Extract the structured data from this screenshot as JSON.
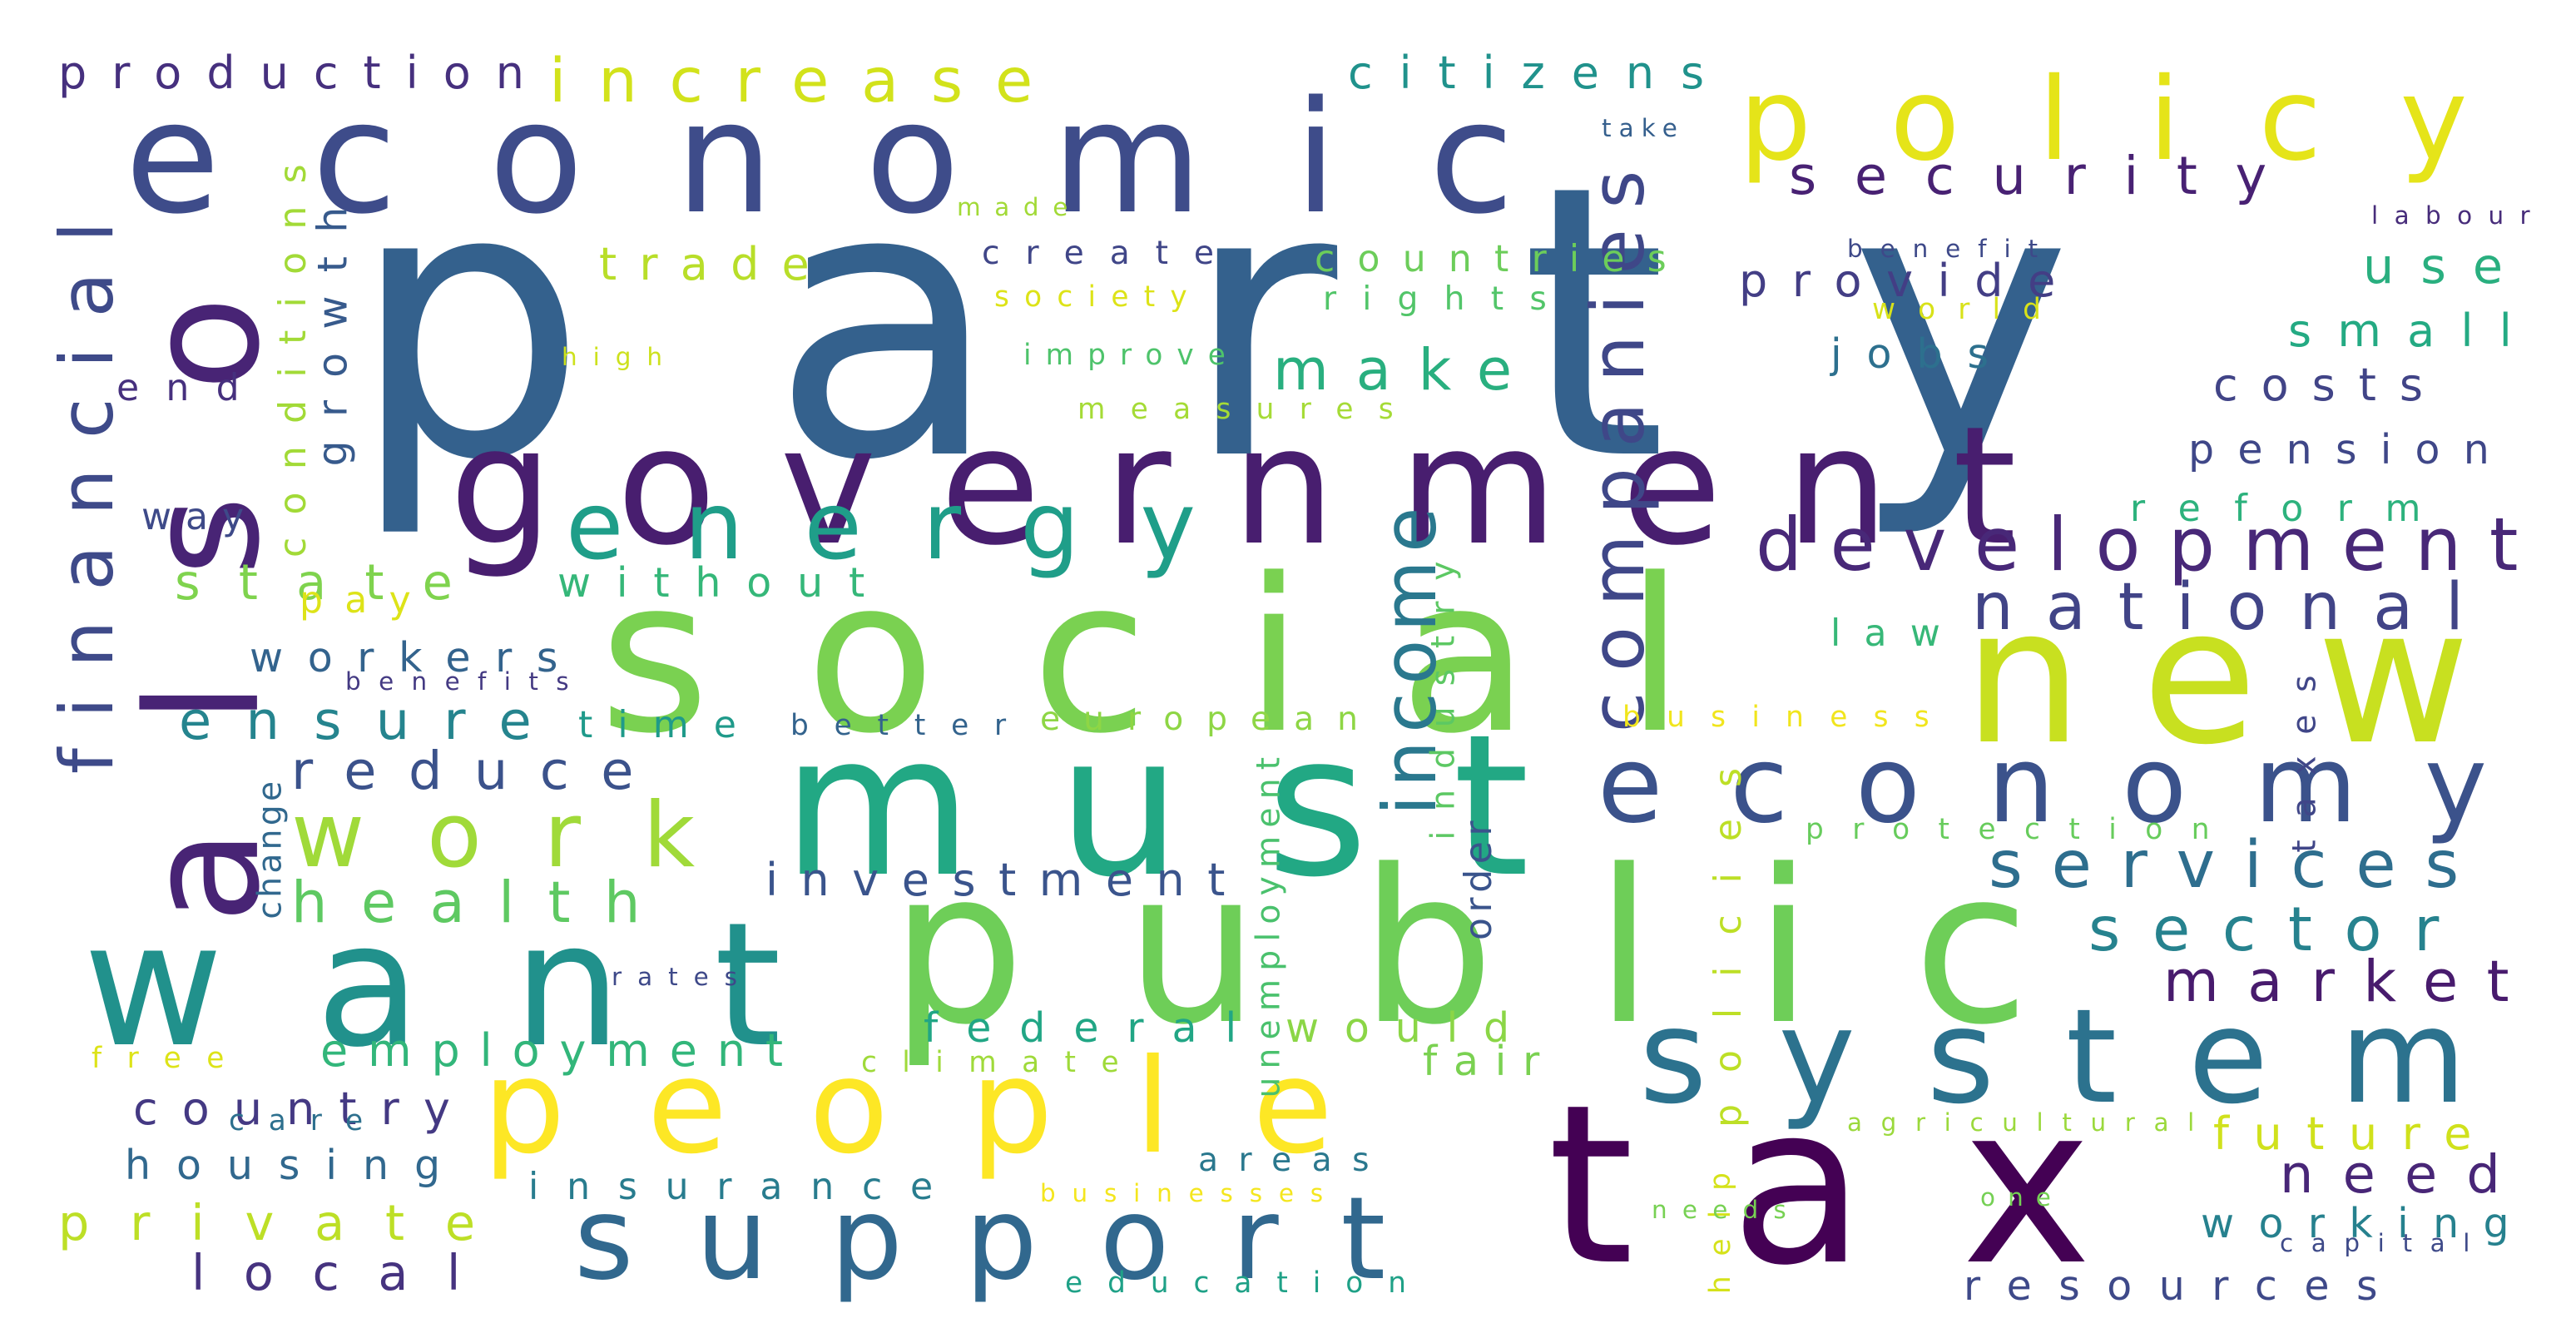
{
  "words": [
    {
      "text": "party",
      "color": "#34618d"
    },
    {
      "text": "economic",
      "color": "#3e4c8a"
    },
    {
      "text": "government",
      "color": "#481e6f"
    },
    {
      "text": "social",
      "color": "#7ad151"
    },
    {
      "text": "must",
      "color": "#22a884"
    },
    {
      "text": "public",
      "color": "#6ece58"
    },
    {
      "text": "tax",
      "color": "#440154"
    },
    {
      "text": "also",
      "color": "#482475"
    },
    {
      "text": "want",
      "color": "#21918c"
    },
    {
      "text": "policy",
      "color": "#e5e419"
    },
    {
      "text": "new",
      "color": "#c8e020"
    },
    {
      "text": "economy",
      "color": "#3b528b"
    },
    {
      "text": "system",
      "color": "#2c728e"
    },
    {
      "text": "people",
      "color": "#fde725"
    },
    {
      "text": "support",
      "color": "#31688e"
    },
    {
      "text": "energy",
      "color": "#1f9e89"
    },
    {
      "text": "work",
      "color": "#a0da39"
    },
    {
      "text": "financial",
      "color": "#3e4a89"
    },
    {
      "text": "development",
      "color": "#482878"
    },
    {
      "text": "companies",
      "color": "#3f4788"
    },
    {
      "text": "income",
      "color": "#2a788e"
    },
    {
      "text": "national",
      "color": "#414487"
    },
    {
      "text": "services",
      "color": "#2e6e8e"
    },
    {
      "text": "sector",
      "color": "#26828e"
    },
    {
      "text": "market",
      "color": "#481b6d"
    },
    {
      "text": "security",
      "color": "#482173"
    },
    {
      "text": "production",
      "color": "#46307e"
    },
    {
      "text": "increase",
      "color": "#d2e21b"
    },
    {
      "text": "citizens",
      "color": "#20928c"
    },
    {
      "text": "health",
      "color": "#5ec962"
    },
    {
      "text": "reduce",
      "color": "#3b528b"
    },
    {
      "text": "ensure",
      "color": "#25848e"
    },
    {
      "text": "state",
      "color": "#7fd34e"
    },
    {
      "text": "without",
      "color": "#35b779"
    },
    {
      "text": "workers",
      "color": "#33638d"
    },
    {
      "text": "make",
      "color": "#29af7f"
    },
    {
      "text": "trade",
      "color": "#b8de29"
    },
    {
      "text": "growth",
      "color": "#375a8c"
    },
    {
      "text": "conditions",
      "color": "#a2da37"
    },
    {
      "text": "investment",
      "color": "#3a548c"
    },
    {
      "text": "federal",
      "color": "#21a685"
    },
    {
      "text": "would",
      "color": "#8bd646"
    },
    {
      "text": "employment",
      "color": "#32b67a"
    },
    {
      "text": "country",
      "color": "#443983"
    },
    {
      "text": "housing",
      "color": "#31688e"
    },
    {
      "text": "insurance",
      "color": "#287c8e"
    },
    {
      "text": "private",
      "color": "#bddf26"
    },
    {
      "text": "local",
      "color": "#46337f"
    },
    {
      "text": "education",
      "color": "#1fa187"
    },
    {
      "text": "future",
      "color": "#d0e11c"
    },
    {
      "text": "need",
      "color": "#482677"
    },
    {
      "text": "working",
      "color": "#26818e"
    },
    {
      "text": "resources",
      "color": "#3e4989"
    },
    {
      "text": "provide",
      "color": "#433e85"
    },
    {
      "text": "use",
      "color": "#29af7f"
    },
    {
      "text": "small",
      "color": "#24aa83"
    },
    {
      "text": "costs",
      "color": "#414487"
    },
    {
      "text": "pension",
      "color": "#3f4788"
    },
    {
      "text": "reform",
      "color": "#2db27d"
    },
    {
      "text": "jobs",
      "color": "#2d708e"
    },
    {
      "text": "law",
      "color": "#37b878"
    },
    {
      "text": "order",
      "color": "#3a548c"
    },
    {
      "text": "industry",
      "color": "#5cc863"
    },
    {
      "text": "policies",
      "color": "#bddf26"
    },
    {
      "text": "help",
      "color": "#d5e21a"
    },
    {
      "text": "fair",
      "color": "#7ad151"
    },
    {
      "text": "climate",
      "color": "#9fda3a"
    },
    {
      "text": "unemployment",
      "color": "#4ac16d"
    },
    {
      "text": "areas",
      "color": "#2a788e"
    },
    {
      "text": "end",
      "color": "#46307e"
    },
    {
      "text": "way",
      "color": "#3e4a89"
    },
    {
      "text": "pay",
      "color": "#dde318"
    },
    {
      "text": "time",
      "color": "#1f9a8a"
    },
    {
      "text": "better",
      "color": "#33638d"
    },
    {
      "text": "european",
      "color": "#8ed645"
    },
    {
      "text": "create",
      "color": "#404688"
    },
    {
      "text": "countries",
      "color": "#6ccd5a"
    },
    {
      "text": "rights",
      "color": "#52c569"
    },
    {
      "text": "improve",
      "color": "#4ec36b"
    },
    {
      "text": "measures",
      "color": "#a5db36"
    },
    {
      "text": "society",
      "color": "#dde318"
    },
    {
      "text": "made",
      "color": "#a2da37"
    },
    {
      "text": "high",
      "color": "#cde11d"
    },
    {
      "text": "take",
      "color": "#355f8d"
    },
    {
      "text": "benefit",
      "color": "#3e4989"
    },
    {
      "text": "world",
      "color": "#d8e219"
    },
    {
      "text": "labour",
      "color": "#472c7a"
    },
    {
      "text": "taxes",
      "color": "#404688"
    },
    {
      "text": "protection",
      "color": "#67cc5c"
    },
    {
      "text": "agricultural",
      "color": "#9bd93c"
    },
    {
      "text": "business",
      "color": "#f1e51d"
    },
    {
      "text": "businesses",
      "color": "#f4e61e"
    },
    {
      "text": "one",
      "color": "#75d054"
    },
    {
      "text": "needs",
      "color": "#77d153"
    },
    {
      "text": "capital",
      "color": "#3e4a89"
    },
    {
      "text": "benefits",
      "color": "#443a83"
    },
    {
      "text": "change",
      "color": "#31688e"
    },
    {
      "text": "rates",
      "color": "#3e4989"
    },
    {
      "text": "care",
      "color": "#2d708e"
    },
    {
      "text": "free",
      "color": "#dde318"
    }
  ]
}
